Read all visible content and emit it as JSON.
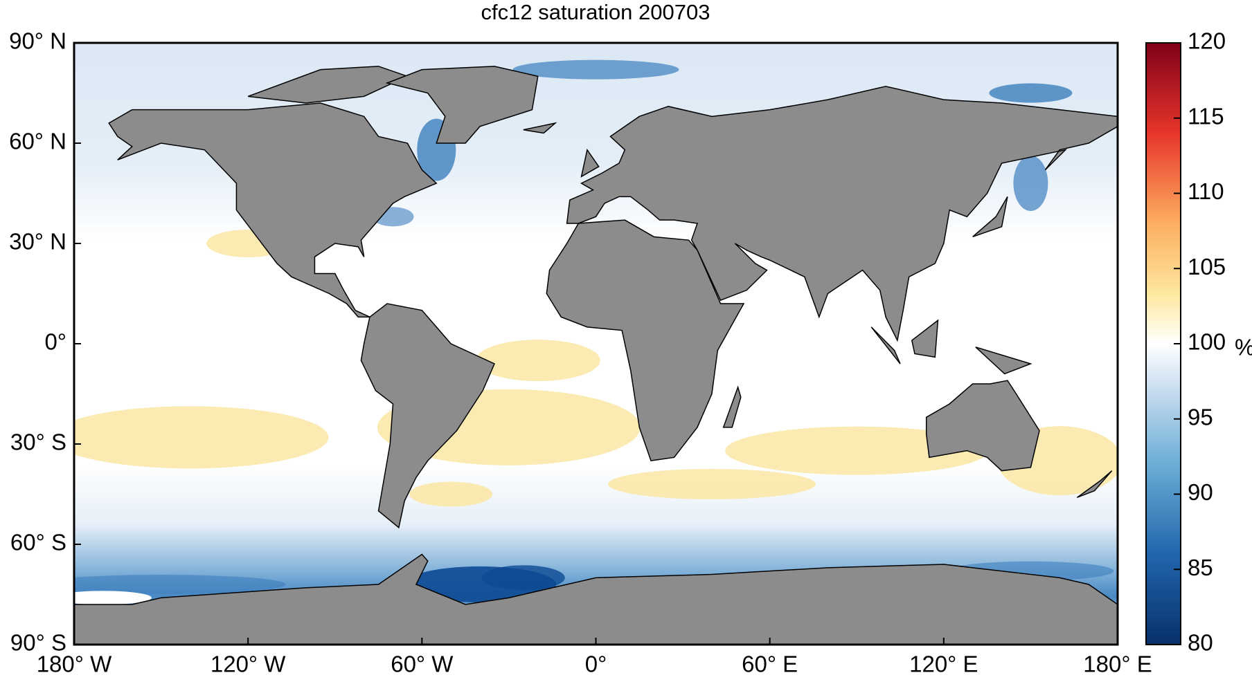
{
  "title": "cfc12 saturation 200703",
  "map": {
    "xlim": [
      -180,
      180
    ],
    "ylim": [
      -90,
      90
    ],
    "xticks": [
      {
        "value": -180,
        "label": "180° W"
      },
      {
        "value": -120,
        "label": "120° W"
      },
      {
        "value": -60,
        "label": "60° W"
      },
      {
        "value": 0,
        "label": "0°"
      },
      {
        "value": 60,
        "label": "60° E"
      },
      {
        "value": 120,
        "label": "120° E"
      },
      {
        "value": 180,
        "label": "180° E"
      }
    ],
    "yticks": [
      {
        "value": 90,
        "label": "90° N"
      },
      {
        "value": 60,
        "label": "60° N"
      },
      {
        "value": 30,
        "label": "30° N"
      },
      {
        "value": 0,
        "label": "0°"
      },
      {
        "value": -30,
        "label": "30° S"
      },
      {
        "value": -60,
        "label": "60° S"
      },
      {
        "value": -90,
        "label": "90° S"
      }
    ]
  },
  "colorbar": {
    "lim": [
      80,
      120
    ],
    "ticks": [
      80,
      85,
      90,
      95,
      100,
      105,
      110,
      115,
      120
    ],
    "unit": "%"
  }
}
